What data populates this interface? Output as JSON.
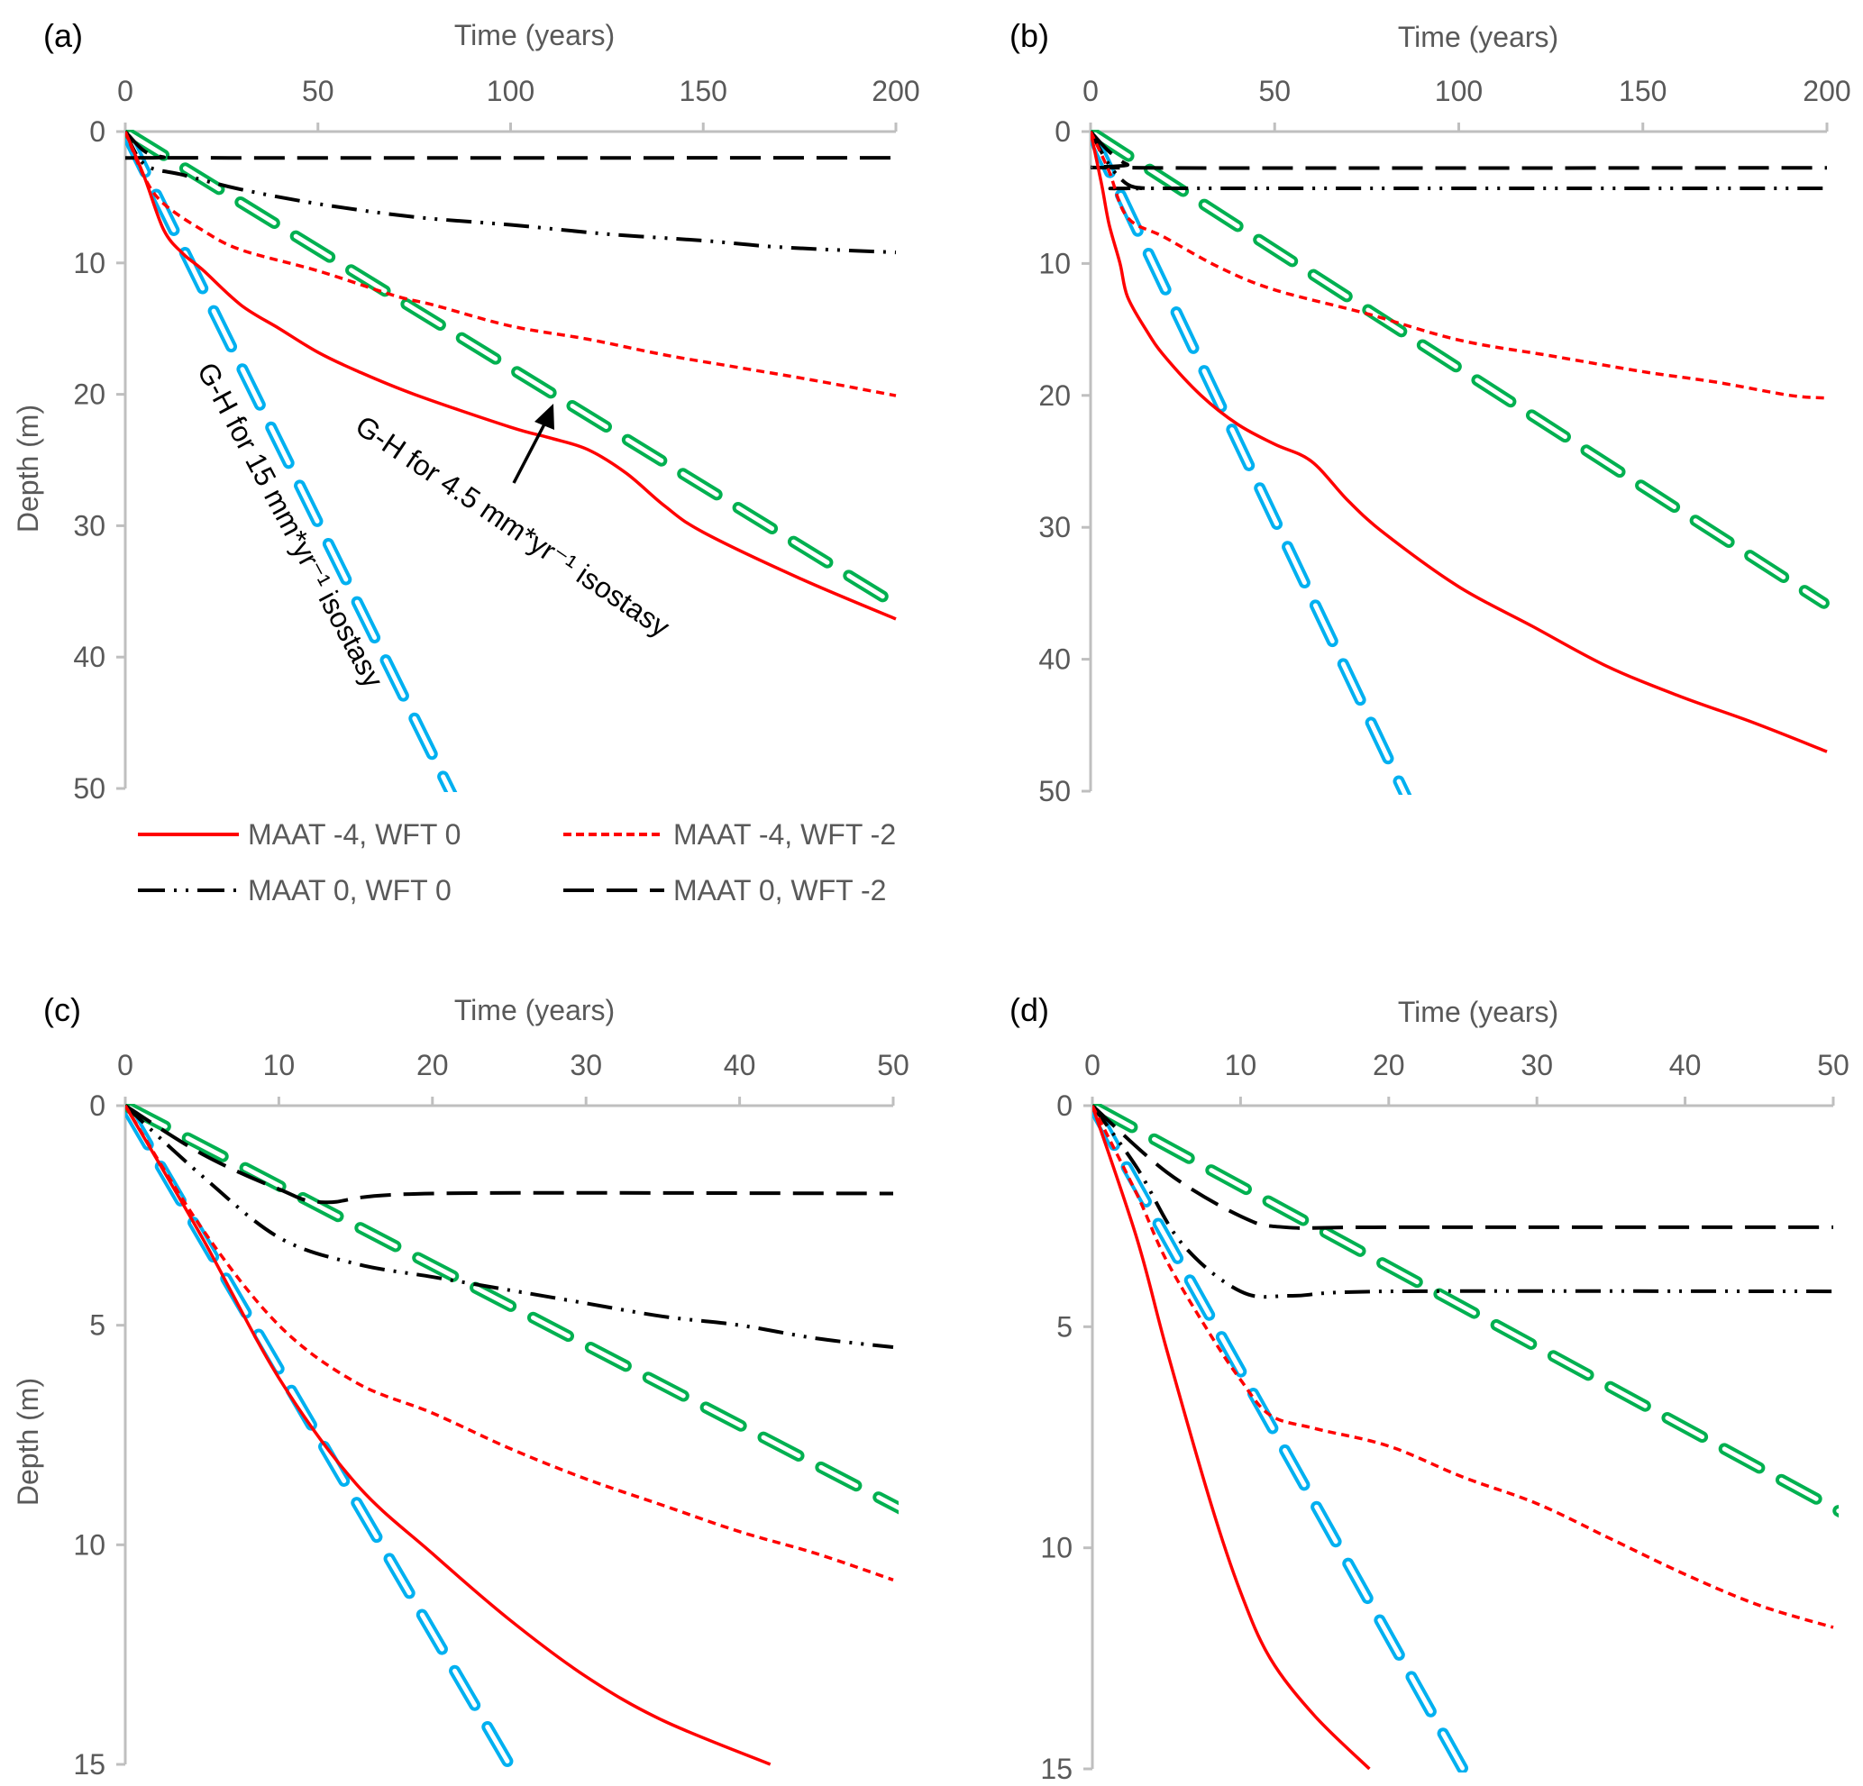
{
  "chart_data": [
    {
      "panel": "(a)",
      "type": "line",
      "xlabel": "Time (years)",
      "ylabel": "Depth (m)",
      "xlim": [
        0,
        200
      ],
      "ylim": [
        0,
        50
      ],
      "y_inverted": true,
      "x_axis_position": "top",
      "xticks": [
        0,
        50,
        100,
        150,
        200
      ],
      "yticks": [
        0,
        10,
        20,
        30,
        40,
        50
      ],
      "grid": false,
      "legend": "bottom",
      "series": [
        {
          "name": "MAAT -4, WFT 0",
          "style": "solid",
          "color": "#FF0000",
          "x": [
            0,
            5,
            10,
            15,
            20,
            30,
            40,
            50,
            60,
            75,
            100,
            110,
            120,
            130,
            140,
            150,
            175,
            200
          ],
          "y": [
            0,
            3.5,
            7.5,
            9.3,
            10.5,
            13.2,
            15,
            16.8,
            18.2,
            20,
            22.5,
            23.3,
            24.2,
            26,
            28.5,
            30.5,
            34,
            37.1
          ]
        },
        {
          "name": "MAAT -4, WFT -2",
          "style": "dashed",
          "color": "#FF0000",
          "x": [
            0,
            5,
            10,
            20,
            30,
            50,
            70,
            80,
            100,
            120,
            140,
            160,
            180,
            200
          ],
          "y": [
            0,
            3.5,
            5.5,
            7.5,
            9,
            10.6,
            12.5,
            13.2,
            14.8,
            15.8,
            17,
            18,
            19,
            20.1
          ]
        },
        {
          "name": "MAAT 0, WFT 0",
          "style": "dash-dot-dot",
          "color": "#000000",
          "x": [
            0,
            5,
            15,
            30,
            50,
            75,
            100,
            125,
            150,
            170,
            200
          ],
          "y": [
            0,
            2.5,
            3.3,
            4.4,
            5.5,
            6.5,
            7.1,
            7.8,
            8.3,
            8.8,
            9.2
          ]
        },
        {
          "name": "MAAT 0, WFT -2",
          "style": "long-dash",
          "color": "#000000",
          "x": [
            0,
            5,
            10,
            15,
            200
          ],
          "y": [
            0,
            1.5,
            1.95,
            2.0,
            2.0
          ]
        },
        {
          "name": "G-H for 15 mm*yr-1 isostasy",
          "style": "hollow-dash",
          "color": "#00B0F0",
          "x": [
            0,
            84
          ],
          "y": [
            0,
            50
          ]
        },
        {
          "name": "G-H for 4.5 mm*yr-1 isostasy",
          "style": "hollow-dash",
          "color": "#00B050",
          "x": [
            0,
            200
          ],
          "y": [
            0,
            36
          ]
        }
      ],
      "annotations": [
        {
          "text": "G-H for 15 mm*yr⁻¹ isostasy",
          "target": "G-H for 15 mm*yr-1 isostasy"
        },
        {
          "text": "G-H for 4.5 mm*yr⁻¹ isostasy",
          "target": "G-H for 4.5 mm*yr-1 isostasy",
          "arrow": true
        }
      ]
    },
    {
      "panel": "(b)",
      "type": "line",
      "xlabel": "Time (years)",
      "ylabel": "",
      "xlim": [
        0,
        200
      ],
      "ylim": [
        0,
        50
      ],
      "y_inverted": true,
      "x_axis_position": "top",
      "xticks": [
        0,
        50,
        100,
        150,
        200
      ],
      "yticks": [
        0,
        10,
        20,
        30,
        40,
        50
      ],
      "grid": false,
      "series": [
        {
          "name": "MAAT -4, WFT 0",
          "style": "solid",
          "color": "#FF0000",
          "x": [
            0,
            3,
            5,
            8,
            10,
            15,
            20,
            30,
            40,
            50,
            60,
            70,
            80,
            100,
            120,
            140,
            160,
            180,
            200
          ],
          "y": [
            0,
            4,
            7,
            10,
            12.5,
            15,
            17,
            20,
            22.2,
            23.7,
            25,
            28,
            30.5,
            34.5,
            37.5,
            40.5,
            42.8,
            44.8,
            47
          ]
        },
        {
          "name": "MAAT -4, WFT -2",
          "style": "dashed",
          "color": "#FF0000",
          "x": [
            0,
            5,
            10,
            20,
            35,
            50,
            75,
            100,
            125,
            150,
            170,
            190,
            200
          ],
          "y": [
            0,
            3,
            6.5,
            8,
            10.3,
            12,
            13.8,
            15.8,
            17,
            18.2,
            19,
            20,
            20.2
          ]
        },
        {
          "name": "MAAT 0, WFT 0",
          "style": "dash-dot-dot",
          "color": "#000000",
          "x": [
            0,
            5,
            10,
            15,
            20,
            200
          ],
          "y": [
            0,
            2.5,
            4,
            4.3,
            4.3,
            4.3
          ]
        },
        {
          "name": "MAAT 0, WFT -2",
          "style": "long-dash",
          "color": "#000000",
          "x": [
            0,
            5,
            10,
            15,
            200
          ],
          "y": [
            0,
            1.5,
            2.5,
            2.75,
            2.75
          ]
        },
        {
          "name": "G-H for 15 mm*yr-1 isostasy",
          "style": "hollow-dash",
          "color": "#00B0F0",
          "x": [
            0,
            85
          ],
          "y": [
            0,
            50
          ]
        },
        {
          "name": "G-H for 4.5 mm*yr-1 isostasy",
          "style": "hollow-dash",
          "color": "#00B050",
          "x": [
            0,
            195
          ],
          "y": [
            0,
            35
          ]
        }
      ]
    },
    {
      "panel": "(c)",
      "type": "line",
      "xlabel": "Time (years)",
      "ylabel": "Depth (m)",
      "xlim": [
        0,
        50
      ],
      "ylim": [
        0,
        15
      ],
      "y_inverted": true,
      "x_axis_position": "top",
      "xticks": [
        0,
        10,
        20,
        30,
        40,
        50
      ],
      "yticks": [
        0,
        5,
        10,
        15
      ],
      "grid": false,
      "series": [
        {
          "name": "MAAT -4, WFT 0",
          "style": "solid",
          "color": "#FF0000",
          "x": [
            0,
            5,
            10,
            15,
            20,
            25,
            30,
            35,
            42
          ],
          "y": [
            0,
            3,
            6.2,
            8.6,
            10.2,
            11.7,
            13.0,
            14.0,
            15
          ]
        },
        {
          "name": "MAAT -4, WFT -2",
          "style": "dashed",
          "color": "#FF0000",
          "x": [
            0,
            5,
            10,
            15,
            20,
            25,
            30,
            35,
            40,
            45,
            50
          ],
          "y": [
            0,
            2.8,
            5,
            6.3,
            7.0,
            7.8,
            8.5,
            9.1,
            9.7,
            10.2,
            10.8
          ]
        },
        {
          "name": "MAAT 0, WFT 0",
          "style": "dash-dot-dot",
          "color": "#000000",
          "x": [
            0,
            5,
            10,
            15,
            20,
            25,
            30,
            35,
            40,
            45,
            50
          ],
          "y": [
            0,
            1.6,
            3.0,
            3.6,
            3.9,
            4.2,
            4.5,
            4.8,
            5.0,
            5.3,
            5.5
          ]
        },
        {
          "name": "MAAT 0, WFT -2",
          "style": "long-dash",
          "color": "#000000",
          "x": [
            0,
            5,
            10,
            13,
            20,
            50
          ],
          "y": [
            0,
            1.1,
            1.9,
            2.2,
            2.0,
            2.0
          ]
        },
        {
          "name": "G-H for 15 mm*yr-1 isostasy",
          "style": "hollow-dash",
          "color": "#00B0F0",
          "x": [
            0,
            25
          ],
          "y": [
            0,
            15
          ]
        },
        {
          "name": "G-H for 4.5 mm*yr-1 isostasy",
          "style": "hollow-dash",
          "color": "#00B050",
          "x": [
            0,
            49.5
          ],
          "y": [
            0,
            9
          ]
        }
      ]
    },
    {
      "panel": "(d)",
      "type": "line",
      "xlabel": "Time (years)",
      "ylabel": "",
      "xlim": [
        0,
        50
      ],
      "ylim": [
        0,
        15
      ],
      "y_inverted": true,
      "x_axis_position": "top",
      "xticks": [
        0,
        10,
        20,
        30,
        40,
        50
      ],
      "yticks": [
        0,
        5,
        10,
        15
      ],
      "grid": false,
      "series": [
        {
          "name": "MAAT -4, WFT 0",
          "style": "solid",
          "color": "#FF0000",
          "x": [
            0,
            3,
            5,
            8,
            10,
            12,
            15,
            18.7
          ],
          "y": [
            0,
            3,
            5.5,
            9,
            11,
            12.5,
            13.8,
            15
          ]
        },
        {
          "name": "MAAT -4, WFT -2",
          "style": "dashed",
          "color": "#FF0000",
          "x": [
            0,
            3,
            5,
            8,
            10,
            12,
            15,
            20,
            25,
            30,
            35,
            40,
            45,
            50
          ],
          "y": [
            0,
            2,
            3.5,
            5.2,
            6.2,
            7,
            7.3,
            7.7,
            8.4,
            9.0,
            9.8,
            10.6,
            11.3,
            11.8
          ]
        },
        {
          "name": "MAAT 0, WFT 0",
          "style": "dash-dot-dot",
          "color": "#000000",
          "x": [
            0,
            3,
            6,
            10,
            13.5,
            20,
            50
          ],
          "y": [
            0,
            1.4,
            3.1,
            4.2,
            4.3,
            4.2,
            4.2
          ]
        },
        {
          "name": "MAAT 0, WFT -2",
          "style": "long-dash",
          "color": "#000000",
          "x": [
            0,
            5,
            10,
            13,
            20,
            50
          ],
          "y": [
            0,
            1.5,
            2.5,
            2.75,
            2.75,
            2.75
          ]
        },
        {
          "name": "G-H for 15 mm*yr-1 isostasy",
          "style": "hollow-dash",
          "color": "#00B0F0",
          "x": [
            0,
            25
          ],
          "y": [
            0,
            15
          ]
        },
        {
          "name": "G-H for 4.5 mm*yr-1 isostasy",
          "style": "hollow-dash",
          "color": "#00B050",
          "x": [
            0,
            50
          ],
          "y": [
            0,
            9.1
          ]
        }
      ]
    }
  ],
  "legend": {
    "items": [
      {
        "label": "MAAT -4, WFT 0",
        "style": "solid",
        "color": "#FF0000"
      },
      {
        "label": "MAAT -4, WFT -2",
        "style": "dashed",
        "color": "#FF0000"
      },
      {
        "label": "MAAT 0, WFT 0",
        "style": "dash-dot-dot",
        "color": "#000000"
      },
      {
        "label": "MAAT 0, WFT -2",
        "style": "long-dash",
        "color": "#000000"
      }
    ]
  },
  "colors": {
    "axis": "#BFBFBF",
    "tick_text": "#595959"
  }
}
